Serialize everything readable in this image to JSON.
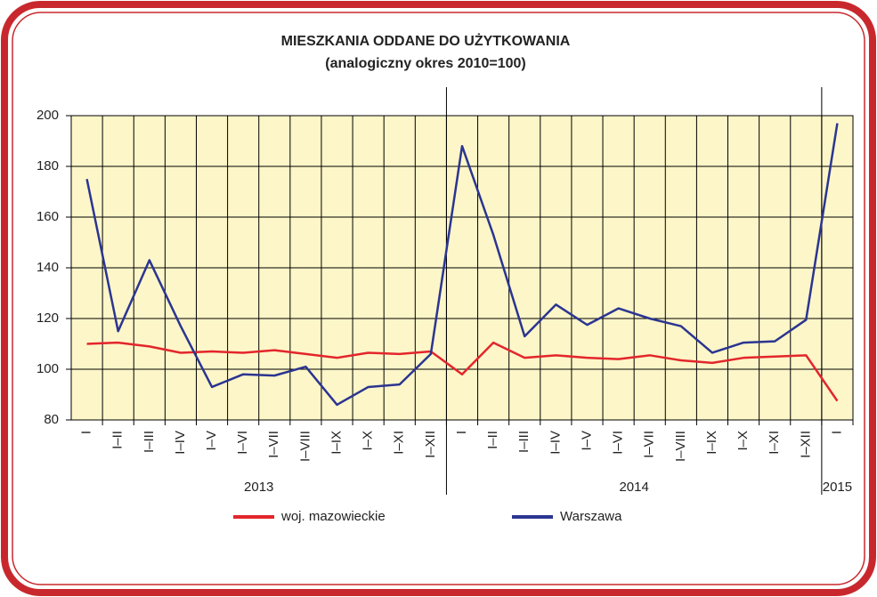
{
  "chart_data": {
    "type": "line",
    "title": "MIESZKANIA ODDANE DO UŻYTKOWANIA",
    "subtitle": "(analogiczny okres 2010=100)",
    "category_groups": [
      {
        "label": "2013",
        "categories": [
          "I",
          "I–II",
          "I–III",
          "I–IV",
          "I–V",
          "I–VI",
          "I–VII",
          "I–VIII",
          "I–IX",
          "I–X",
          "I–XI",
          "I–XII"
        ]
      },
      {
        "label": "2014",
        "categories": [
          "I",
          "I–II",
          "I–III",
          "I–IV",
          "I–V",
          "I–VI",
          "I–VII",
          "I–VIII",
          "I–IX",
          "I–X",
          "I–XI",
          "I–XII"
        ]
      },
      {
        "label": "2015",
        "categories": [
          "I"
        ]
      }
    ],
    "series": [
      {
        "name": "woj. mazowieckie",
        "color": "#e3262c",
        "values": [
          110,
          110.5,
          109,
          106.5,
          107,
          106.5,
          107.5,
          106,
          104.5,
          106.5,
          106,
          107,
          98,
          110.5,
          104.5,
          105.5,
          104.5,
          104,
          105.5,
          103.5,
          102.5,
          104.5,
          105,
          105.5,
          87.5
        ]
      },
      {
        "name": "Warszawa",
        "color": "#2b3591",
        "values": [
          175,
          115,
          143,
          117,
          93,
          98,
          97.5,
          101,
          86,
          93,
          94,
          106,
          188,
          153,
          113,
          125.5,
          117.5,
          124,
          120,
          117,
          106.5,
          110.5,
          111,
          119.5,
          197
        ]
      }
    ],
    "ylim": [
      80,
      200
    ],
    "yticks": [
      80,
      100,
      120,
      140,
      160,
      180,
      200
    ],
    "grid": true,
    "plot_color": "#fdf6c8"
  }
}
